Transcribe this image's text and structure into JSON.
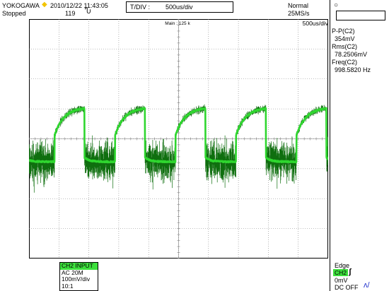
{
  "header": {
    "brand": "YOKOGAWA",
    "datetime": "2010/12/22 11:43:05",
    "status": "Stopped",
    "count": "119",
    "tdiv_label": "T/DIV :",
    "tdiv_value": "500us/div",
    "acq_mode": "Normal",
    "sample_rate": "25MS/s"
  },
  "plot": {
    "main_label": "Main : 125 k",
    "tdiv_corner": "500us/div",
    "trace_color": "#2fd62f",
    "grid_color": "#7f7f7f",
    "marker_label": "T"
  },
  "measurements": [
    {
      "label": "P-P(C2)",
      "value": "354mV"
    },
    {
      "label": "Rms(C2)",
      "value": "78.2506mV"
    },
    {
      "label": "Freq(C2)",
      "value": "998.5820 Hz"
    }
  ],
  "channel": {
    "header": "CH2 INPUT",
    "coupling": "AC 20M",
    "vdiv": "100mV/div",
    "probe": "10:1"
  },
  "trigger": {
    "type": "Edge",
    "source": "CH2",
    "edge_icon": "rising-edge-icon",
    "level": "0mV",
    "coupling": "DC OFF"
  }
}
